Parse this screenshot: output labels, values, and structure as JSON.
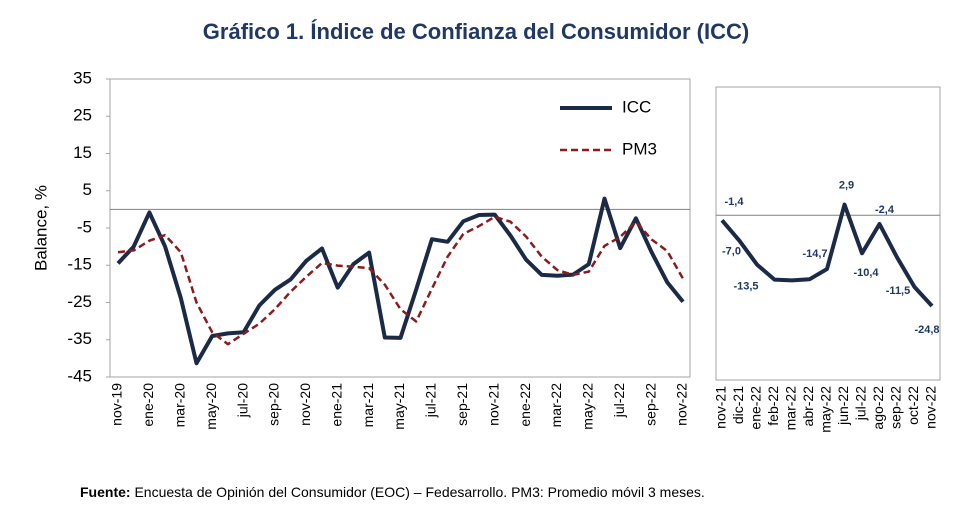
{
  "title": "Gráfico 1. Índice de Confianza del Consumidor (ICC)",
  "chart_data": [
    {
      "type": "line",
      "ylabel": "Balance, %",
      "categories": [
        "nov-19",
        null,
        "ene-20",
        null,
        "mar-20",
        null,
        "may-20",
        null,
        "jul-20",
        null,
        "sep-20",
        null,
        "nov-20",
        null,
        "ene-21",
        null,
        "mar-21",
        null,
        "may-21",
        null,
        "jul-21",
        null,
        "sep-21",
        null,
        "nov-21",
        null,
        "ene-22",
        null,
        "mar-22",
        null,
        "may-22",
        null,
        "jul-22",
        null,
        "sep-22",
        null,
        "nov-22"
      ],
      "series": [
        {
          "name": "ICC",
          "color": "#1b2a47",
          "dash": false,
          "values": [
            -14.5,
            -10.0,
            -0.8,
            -10.0,
            -23.8,
            -41.3,
            -34.0,
            -33.3,
            -33.0,
            -25.8,
            -21.6,
            -18.8,
            -13.8,
            -10.5,
            -21.0,
            -14.7,
            -11.6,
            -34.4,
            -34.5,
            -21.5,
            -8.0,
            -8.7,
            -3.2,
            -1.5,
            -1.4,
            -7.0,
            -13.5,
            -17.6,
            -17.8,
            -17.5,
            -14.7,
            2.9,
            -10.4,
            -2.4,
            -11.5,
            -19.6,
            -24.8
          ]
        },
        {
          "name": "PM3",
          "color": "#8b1c1c",
          "dash": true,
          "values": [
            -11.5,
            -11.0,
            -8.4,
            -6.9,
            -11.5,
            -25.0,
            -33.0,
            -36.2,
            -33.4,
            -30.7,
            -26.8,
            -22.1,
            -18.1,
            -14.4,
            -15.1,
            -15.4,
            -15.8,
            -20.2,
            -26.8,
            -30.1,
            -21.3,
            -12.7,
            -6.6,
            -4.5,
            -2.0,
            -3.3,
            -7.3,
            -12.7,
            -16.3,
            -17.6,
            -16.7,
            -9.8,
            -7.4,
            -3.3,
            -8.1,
            -11.2,
            -18.6
          ]
        }
      ],
      "ylim": [
        -45,
        35
      ],
      "yticks": [
        -45,
        -35,
        -25,
        -15,
        -5,
        5,
        15,
        25,
        35
      ],
      "legend": "upper right"
    },
    {
      "type": "line",
      "categories": [
        "nov-21",
        "dic-21",
        "ene-22",
        "feb-22",
        "mar-22",
        "abr-22",
        "may-22",
        "jun-22",
        "jul-22",
        "ago-22",
        "sep-22",
        "oct-22",
        "nov-22"
      ],
      "series": [
        {
          "name": "ICC",
          "color": "#1b2a47",
          "values": [
            -1.4,
            -7.0,
            -13.5,
            -17.6,
            -17.8,
            -17.5,
            -14.7,
            2.9,
            -10.4,
            -2.4,
            -11.5,
            -19.6,
            -24.8
          ],
          "value_labels": [
            "-1,4",
            "-7,0",
            "-13,5",
            null,
            null,
            null,
            "-14,7",
            "2,9",
            "-10,4",
            "-2,4",
            "-11,5",
            null,
            "-24,8"
          ]
        }
      ],
      "ylim": [
        -45,
        35
      ]
    }
  ],
  "source": {
    "label": "Fuente:",
    "text": "Encuesta de Opinión del Consumidor (EOC) – Fedesarrollo. PM3: Promedio móvil 3 meses."
  }
}
